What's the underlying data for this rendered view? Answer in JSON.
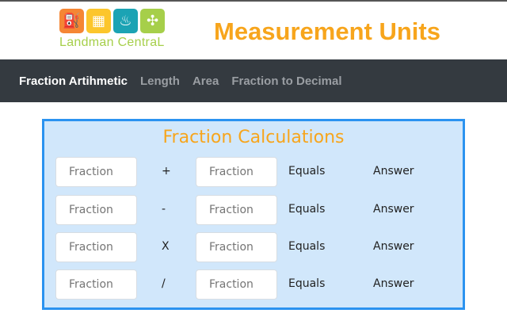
{
  "header": {
    "logo_text": "Landman CentraL",
    "title": "Measurement Units",
    "logo_icons": [
      "oil-pump-icon",
      "solar-panel-icon",
      "flame-icon",
      "wind-turbine-icon"
    ],
    "logo_colors": [
      "#f58634",
      "#fcc62c",
      "#1ba3b4",
      "#a6cf4a"
    ]
  },
  "nav": {
    "items": [
      {
        "label": "Fraction Artihmetic",
        "active": true
      },
      {
        "label": "Length"
      },
      {
        "label": "Area"
      },
      {
        "label": "Fraction to Decimal"
      }
    ]
  },
  "card": {
    "title": "Fraction Calculations",
    "rows": [
      {
        "op": "+",
        "placeholder1": "Fraction",
        "placeholder2": "Fraction",
        "equals": "Equals",
        "answer": "Answer"
      },
      {
        "op": "-",
        "placeholder1": "Fraction",
        "placeholder2": "Fraction",
        "equals": "Equals",
        "answer": "Answer"
      },
      {
        "op": "X",
        "placeholder1": "Fraction",
        "placeholder2": "Fraction",
        "equals": "Equals",
        "answer": "Answer"
      },
      {
        "op": "/",
        "placeholder1": "Fraction",
        "placeholder2": "Fraction",
        "equals": "Equals",
        "answer": "Answer"
      }
    ]
  },
  "colors": {
    "accent": "#f7a51c",
    "nav_bg": "#343a40",
    "card_bg": "#d1e7fb",
    "card_border": "#2b93f0"
  }
}
